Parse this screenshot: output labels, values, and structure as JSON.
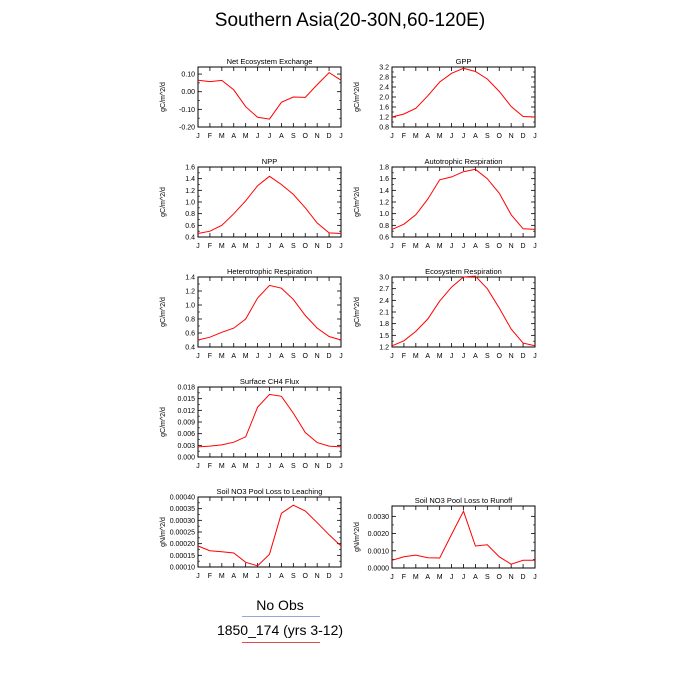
{
  "page_title": "Southern Asia(20-30N,60-120E)",
  "colors": {
    "line": "#ff0000",
    "axis": "#000000",
    "legend_obs": "#9aa6d8",
    "legend_model": "#e24a4a"
  },
  "legend": [
    {
      "label": "No Obs"
    },
    {
      "label": "1850_174 (yrs 3-12)"
    }
  ],
  "chart_data": [
    {
      "type": "line",
      "title": "Net Ecosystem Exchange",
      "ylabel": "gC/m^2/d",
      "categories": [
        "J",
        "F",
        "M",
        "A",
        "M",
        "J",
        "J",
        "A",
        "S",
        "O",
        "N",
        "D",
        "J"
      ],
      "values": [
        0.065,
        0.057,
        0.064,
        0.01,
        -0.085,
        -0.145,
        -0.155,
        -0.06,
        -0.03,
        -0.032,
        0.04,
        0.108,
        0.065
      ],
      "ylim": [
        -0.2,
        0.14
      ],
      "yticks": [
        -0.2,
        -0.1,
        0.0,
        0.1
      ],
      "ytick_labels": [
        "-0.20",
        "-0.10",
        "0.00",
        "0.10"
      ]
    },
    {
      "type": "line",
      "title": "GPP",
      "ylabel": "gC/m^2/d",
      "categories": [
        "J",
        "F",
        "M",
        "A",
        "M",
        "J",
        "J",
        "A",
        "S",
        "O",
        "N",
        "D",
        "J"
      ],
      "values": [
        1.2,
        1.32,
        1.55,
        2.05,
        2.6,
        2.95,
        3.15,
        3.02,
        2.72,
        2.22,
        1.62,
        1.22,
        1.2
      ],
      "ylim": [
        0.8,
        3.2
      ],
      "yticks": [
        0.8,
        1.2,
        1.6,
        2.0,
        2.4,
        2.8,
        3.2
      ],
      "ytick_labels": [
        "0.8",
        "1.2",
        "1.6",
        "2.0",
        "2.4",
        "2.8",
        "3.2"
      ]
    },
    {
      "type": "line",
      "title": "NPP",
      "ylabel": "gC/m^2/d",
      "categories": [
        "J",
        "F",
        "M",
        "A",
        "M",
        "J",
        "J",
        "A",
        "S",
        "O",
        "N",
        "D",
        "J"
      ],
      "values": [
        0.46,
        0.5,
        0.6,
        0.8,
        1.02,
        1.28,
        1.44,
        1.3,
        1.13,
        0.9,
        0.64,
        0.47,
        0.46
      ],
      "ylim": [
        0.4,
        1.6
      ],
      "yticks": [
        0.4,
        0.6,
        0.8,
        1.0,
        1.2,
        1.4,
        1.6
      ],
      "ytick_labels": [
        "0.4",
        "0.6",
        "0.8",
        "1.0",
        "1.2",
        "1.4",
        "1.6"
      ]
    },
    {
      "type": "line",
      "title": "Autotrophic Respiration",
      "ylabel": "gC/m^2/d",
      "categories": [
        "J",
        "F",
        "M",
        "A",
        "M",
        "J",
        "J",
        "A",
        "S",
        "O",
        "N",
        "D",
        "J"
      ],
      "values": [
        0.73,
        0.82,
        0.98,
        1.25,
        1.58,
        1.63,
        1.72,
        1.76,
        1.6,
        1.35,
        0.98,
        0.74,
        0.73
      ],
      "ylim": [
        0.6,
        1.8
      ],
      "yticks": [
        0.6,
        0.8,
        1.0,
        1.2,
        1.4,
        1.6,
        1.8
      ],
      "ytick_labels": [
        "0.6",
        "0.8",
        "1.0",
        "1.2",
        "1.4",
        "1.6",
        "1.8"
      ]
    },
    {
      "type": "line",
      "title": "Heterotrophic Respiration",
      "ylabel": "gC/m^2/d",
      "categories": [
        "J",
        "F",
        "M",
        "A",
        "M",
        "J",
        "J",
        "A",
        "S",
        "O",
        "N",
        "D",
        "J"
      ],
      "values": [
        0.5,
        0.54,
        0.61,
        0.67,
        0.8,
        1.1,
        1.28,
        1.24,
        1.08,
        0.85,
        0.67,
        0.55,
        0.5
      ],
      "ylim": [
        0.4,
        1.4
      ],
      "yticks": [
        0.4,
        0.6,
        0.8,
        1.0,
        1.2,
        1.4
      ],
      "ytick_labels": [
        "0.4",
        "0.6",
        "0.8",
        "1.0",
        "1.2",
        "1.4"
      ]
    },
    {
      "type": "line",
      "title": "Ecosystem Respiration",
      "ylabel": "gC/m^2/d",
      "categories": [
        "J",
        "F",
        "M",
        "A",
        "M",
        "J",
        "J",
        "A",
        "S",
        "O",
        "N",
        "D",
        "J"
      ],
      "values": [
        1.23,
        1.36,
        1.6,
        1.92,
        2.38,
        2.74,
        3.0,
        3.02,
        2.7,
        2.2,
        1.66,
        1.3,
        1.23
      ],
      "ylim": [
        1.2,
        3.0
      ],
      "yticks": [
        1.2,
        1.5,
        1.8,
        2.1,
        2.4,
        2.7,
        3.0
      ],
      "ytick_labels": [
        "1.2",
        "1.5",
        "1.8",
        "2.1",
        "2.4",
        "2.7",
        "3.0"
      ]
    },
    {
      "type": "line",
      "title": "Surface CH4 Flux",
      "ylabel": "gC/m^2/d",
      "categories": [
        "J",
        "F",
        "M",
        "A",
        "M",
        "J",
        "J",
        "A",
        "S",
        "O",
        "N",
        "D",
        "J"
      ],
      "values": [
        0.0026,
        0.0028,
        0.0031,
        0.0038,
        0.0052,
        0.0128,
        0.0161,
        0.0156,
        0.0113,
        0.0063,
        0.0037,
        0.0028,
        0.0026
      ],
      "ylim": [
        0.0,
        0.018
      ],
      "yticks": [
        0.0,
        0.003,
        0.006,
        0.009,
        0.012,
        0.015,
        0.018
      ],
      "ytick_labels": [
        "0.000",
        "0.003",
        "0.006",
        "0.009",
        "0.012",
        "0.015",
        "0.018"
      ]
    },
    {
      "type": "line",
      "title": "Soil NO3 Pool Loss to Leaching",
      "ylabel": "gN/m^2/d",
      "categories": [
        "J",
        "F",
        "M",
        "A",
        "M",
        "J",
        "J",
        "A",
        "S",
        "O",
        "N",
        "D",
        "J"
      ],
      "values": [
        0.00019,
        0.00017,
        0.000165,
        0.00016,
        0.00012,
        0.000105,
        0.000155,
        0.00033,
        0.000365,
        0.00034,
        0.00029,
        0.000238,
        0.00019
      ],
      "ylim": [
        0.0001,
        0.0004
      ],
      "yticks": [
        0.0001,
        0.00015,
        0.0002,
        0.00025,
        0.0003,
        0.00035,
        0.0004
      ],
      "ytick_labels": [
        "0.00010",
        "0.00015",
        "0.00020",
        "0.00025",
        "0.00030",
        "0.00035",
        "0.00040"
      ]
    },
    {
      "type": "line",
      "title": "Soil NO3 Pool Loss to Runoff",
      "ylabel": "gN/m^2/d",
      "categories": [
        "J",
        "F",
        "M",
        "A",
        "M",
        "J",
        "J",
        "A",
        "S",
        "O",
        "N",
        "D",
        "J"
      ],
      "values": [
        0.00045,
        0.00065,
        0.00075,
        0.0006,
        0.00058,
        0.00195,
        0.0033,
        0.00128,
        0.00135,
        0.00065,
        0.00022,
        0.00045,
        0.00045
      ],
      "ylim": [
        0.0,
        0.0036
      ],
      "yticks": [
        0.0,
        0.001,
        0.002,
        0.003
      ],
      "ytick_labels": [
        "0.0000",
        "0.0010",
        "0.0020",
        "0.0030"
      ]
    }
  ]
}
